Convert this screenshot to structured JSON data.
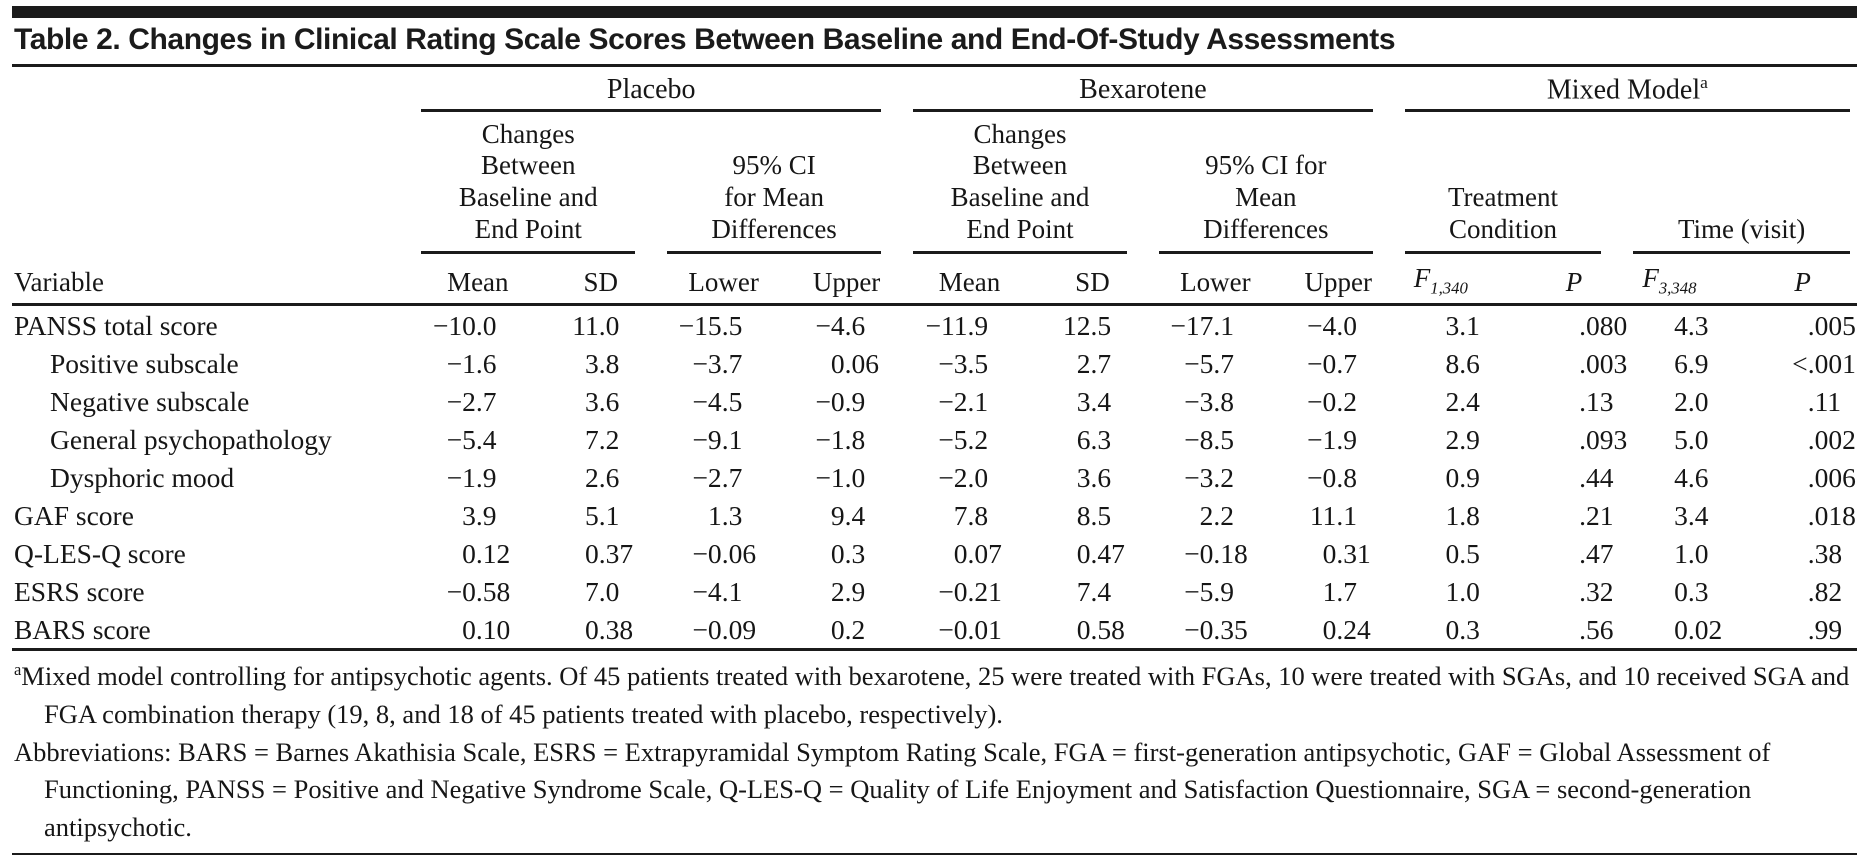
{
  "title": "Table 2. Changes in Clinical Rating Scale Scores Between Baseline and End-Of-Study Assessments",
  "header": {
    "variable": "Variable",
    "groups": [
      {
        "label": "Placebo",
        "sup": ""
      },
      {
        "label": "Bexarotene",
        "sup": ""
      },
      {
        "label": "Mixed Model",
        "sup": "a"
      }
    ],
    "subgroups": [
      {
        "lines": [
          "Changes",
          "Between",
          "Baseline and",
          "End Point"
        ]
      },
      {
        "lines": [
          "95% CI",
          "for Mean",
          "Differences"
        ]
      },
      {
        "lines": [
          "Changes",
          "Between",
          "Baseline and",
          "End Point"
        ]
      },
      {
        "lines": [
          "95% CI for",
          "Mean",
          "Differences"
        ]
      },
      {
        "lines": [
          "Treatment",
          "Condition"
        ]
      },
      {
        "lines": [
          "Time (visit)"
        ]
      }
    ],
    "stats": {
      "mean1": "Mean",
      "sd1": "SD",
      "lower1": "Lower",
      "upper1": "Upper",
      "mean2": "Mean",
      "sd2": "SD",
      "lower2": "Lower",
      "upper2": "Upper",
      "f_treat": {
        "base": "F",
        "sub": "1,340"
      },
      "p_treat": "P",
      "f_time": {
        "base": "F",
        "sub": "3,348"
      },
      "p_time": "P"
    }
  },
  "rows": [
    {
      "label": "PANSS total score",
      "indent": 0,
      "values": [
        "−10.0",
        "11.0",
        "−15.5",
        "−4.6",
        "−11.9",
        "12.5",
        "−17.1",
        "−4.0",
        "3.1",
        ".080",
        "4.3",
        ".005"
      ]
    },
    {
      "label": "Positive subscale",
      "indent": 1,
      "values": [
        "−1.6",
        "3.8",
        "−3.7",
        "0.06",
        "−3.5",
        "2.7",
        "−5.7",
        "−0.7",
        "8.6",
        ".003",
        "6.9",
        "<.001"
      ]
    },
    {
      "label": "Negative subscale",
      "indent": 1,
      "values": [
        "−2.7",
        "3.6",
        "−4.5",
        "−0.9",
        "−2.1",
        "3.4",
        "−3.8",
        "−0.2",
        "2.4",
        ".13",
        "2.0",
        ".11"
      ]
    },
    {
      "label": "General psychopathology",
      "indent": 1,
      "values": [
        "−5.4",
        "7.2",
        "−9.1",
        "−1.8",
        "−5.2",
        "6.3",
        "−8.5",
        "−1.9",
        "2.9",
        ".093",
        "5.0",
        ".002"
      ]
    },
    {
      "label": "Dysphoric mood",
      "indent": 1,
      "values": [
        "−1.9",
        "2.6",
        "−2.7",
        "−1.0",
        "−2.0",
        "3.6",
        "−3.2",
        "−0.8",
        "0.9",
        ".44",
        "4.6",
        ".006"
      ]
    },
    {
      "label": "GAF score",
      "indent": 0,
      "values": [
        "3.9",
        "5.1",
        "1.3",
        "9.4",
        "7.8",
        "8.5",
        "2.2",
        "11.1",
        "1.8",
        ".21",
        "3.4",
        ".018"
      ]
    },
    {
      "label": "Q-LES-Q score",
      "indent": 0,
      "values": [
        "0.12",
        "0.37",
        "−0.06",
        "0.3",
        "0.07",
        "0.47",
        "−0.18",
        "0.31",
        "0.5",
        ".47",
        "1.0",
        ".38"
      ]
    },
    {
      "label": "ESRS score",
      "indent": 0,
      "values": [
        "−0.58",
        "7.0",
        "−4.1",
        "2.9",
        "−0.21",
        "7.4",
        "−5.9",
        "1.7",
        "1.0",
        ".32",
        "0.3",
        ".82"
      ]
    },
    {
      "label": "BARS score",
      "indent": 0,
      "values": [
        "0.10",
        "0.38",
        "−0.09",
        "0.2",
        "−0.01",
        "0.58",
        "−0.35",
        "0.24",
        "0.3",
        ".56",
        "0.02",
        ".99"
      ]
    }
  ],
  "footnotes": {
    "a_marker": "a",
    "a_text": "Mixed model controlling for antipsychotic agents. Of 45 patients treated with bexarotene, 25 were treated with FGAs, 10 were treated with SGAs, and 10 received SGA and FGA combination therapy (19, 8, and 18 of 45 patients treated with placebo, respectively).",
    "abbreviations": "Abbreviations: BARS = Barnes Akathisia Scale, ESRS = Extrapyramidal Symptom Rating Scale, FGA = first-generation antipsychotic, GAF = Global Assessment of Functioning, PANSS = Positive and Negative Syndrome Scale, Q-LES-Q = Quality of Life Enjoyment and Satisfaction Questionnaire, SGA = second-generation antipsychotic."
  }
}
